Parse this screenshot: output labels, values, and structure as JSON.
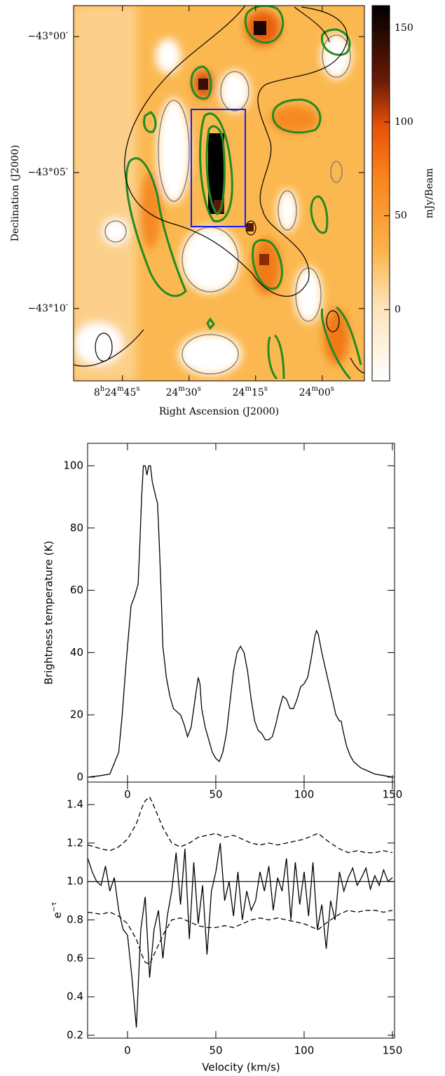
{
  "chart_data": [
    {
      "type": "image",
      "xlabel": "Right Ascension (J2000)",
      "ylabel": "Declination (J2000)",
      "xlim": [
        30296,
        30230.5
      ],
      "ylim": [
        -43.211,
        -42.981
      ],
      "xticks": [
        {
          "value": 30285,
          "label": [
            "8",
            "h",
            "24",
            "m",
            "45",
            "s"
          ]
        },
        {
          "value": 30270,
          "label": [
            "24",
            "m",
            "30",
            "s"
          ]
        },
        {
          "value": 30255,
          "label": [
            "24",
            "m",
            "15",
            "s"
          ]
        },
        {
          "value": 30240,
          "label": [
            "24",
            "m",
            "00",
            "s"
          ]
        }
      ],
      "yticks": [
        {
          "value": -43.0,
          "label": "−43°00′"
        },
        {
          "value": -43.083333,
          "label": "−43°05′"
        },
        {
          "value": -43.166667,
          "label": "−43°10′"
        }
      ],
      "colorbar": {
        "label": "mJy/Beam",
        "lim": [
          -38,
          162
        ],
        "ticks": [
          0,
          50,
          100,
          150
        ]
      }
    },
    {
      "type": "line",
      "ylabel": "Brightness temperature (K)",
      "xlim": [
        -22.6,
        151.2
      ],
      "ylim": [
        -1.6,
        107.2
      ],
      "xticks": [
        0,
        50,
        100,
        150
      ],
      "yticks": [
        0,
        20,
        40,
        60,
        80,
        100
      ],
      "series": [
        {
          "color": "#000000",
          "dash": false,
          "x": [
            -22,
            -15,
            -10,
            -5,
            -3,
            -1,
            0,
            2,
            4,
            6,
            7,
            8,
            9,
            10,
            11,
            12,
            13,
            14,
            16,
            17,
            18,
            19,
            20,
            22,
            24,
            26,
            28,
            30,
            32,
            34,
            36,
            38,
            40,
            41,
            42,
            44,
            46,
            48,
            50,
            52,
            54,
            56,
            58,
            60,
            62,
            64,
            66,
            68,
            70,
            72,
            74,
            76,
            78,
            80,
            82,
            84,
            86,
            88,
            90,
            92,
            94,
            96,
            98,
            100,
            102,
            104,
            106,
            107,
            108,
            110,
            112,
            114,
            116,
            118,
            120,
            121,
            122,
            124,
            126,
            128,
            132,
            136,
            140,
            145,
            150
          ],
          "values": [
            0,
            0.5,
            1,
            8,
            20,
            35,
            42,
            55,
            58,
            62,
            75,
            90,
            100,
            100,
            97,
            100,
            100,
            95,
            90,
            88,
            75,
            60,
            42,
            32,
            26,
            22,
            21,
            20,
            17,
            13,
            16,
            24,
            32,
            30,
            22,
            16,
            12,
            8,
            6,
            5,
            8,
            14,
            24,
            34,
            40,
            42,
            40,
            34,
            25,
            18,
            15,
            14,
            12,
            12,
            13,
            17,
            22,
            26,
            25,
            22,
            22,
            25,
            29,
            30,
            32,
            38,
            45,
            47,
            46,
            40,
            35,
            30,
            25,
            20,
            18,
            18,
            15,
            10,
            7,
            5,
            3,
            2,
            1,
            0.5,
            0
          ]
        }
      ]
    },
    {
      "type": "line",
      "xlabel": "Velocity (km/s)",
      "ylabel": [
        "e",
        "−τ"
      ],
      "xlim": [
        -22.6,
        151.2
      ],
      "ylim": [
        0.185,
        1.517
      ],
      "xticks": [
        0,
        50,
        100,
        150
      ],
      "yticks": [
        0.2,
        0.4,
        0.6,
        0.8,
        {
          "value": 1,
          "label": "1.0"
        },
        1.2,
        1.4
      ],
      "reference_y": 1,
      "series": [
        {
          "color": "#000000",
          "dash": false,
          "x": [
            -22.5,
            -20,
            -17.5,
            -15,
            -12.5,
            -10,
            -7.5,
            -5,
            -2.5,
            0,
            2.5,
            5,
            7.5,
            10,
            12.5,
            15,
            17.5,
            20,
            22.5,
            25,
            27.5,
            30,
            32.5,
            35,
            37.5,
            40,
            42.5,
            45,
            47.5,
            50,
            52.5,
            55,
            57.5,
            60,
            62.5,
            65,
            67.5,
            70,
            72.5,
            75,
            77.5,
            80,
            82.5,
            85,
            87.5,
            90,
            92.5,
            95,
            97.5,
            100,
            102.5,
            105,
            107.5,
            110,
            112.5,
            115,
            117.5,
            120,
            122.5,
            125,
            127.5,
            130,
            132.5,
            135,
            137.5,
            140,
            142.5,
            145,
            147.5,
            150
          ],
          "values": [
            1.12,
            1.05,
            1.0,
            0.98,
            1.08,
            0.95,
            1.02,
            0.85,
            0.75,
            0.72,
            0.5,
            0.24,
            0.75,
            0.92,
            0.5,
            0.75,
            0.85,
            0.6,
            0.82,
            0.95,
            1.15,
            0.88,
            1.17,
            0.7,
            1.1,
            0.78,
            0.98,
            0.62,
            0.95,
            1.05,
            1.2,
            0.9,
            1.0,
            0.82,
            1.05,
            0.8,
            0.95,
            0.85,
            0.9,
            1.05,
            0.95,
            1.08,
            0.85,
            1.02,
            0.95,
            1.12,
            0.8,
            1.1,
            0.88,
            1.05,
            0.82,
            1.1,
            0.75,
            0.88,
            0.65,
            0.9,
            0.8,
            1.05,
            0.95,
            1.02,
            1.07,
            0.98,
            1.02,
            1.07,
            0.96,
            1.03,
            0.98,
            1.06,
            1.0,
            1.02
          ]
        },
        {
          "color": "#000000",
          "dash": true,
          "x": [
            -22.5,
            -15,
            -10,
            -5,
            0,
            5,
            8,
            10,
            12.5,
            15,
            20,
            25,
            30,
            35,
            40,
            45,
            50,
            55,
            60,
            65,
            70,
            75,
            80,
            85,
            90,
            95,
            100,
            105,
            108,
            112,
            115,
            120,
            125,
            130,
            135,
            140,
            145,
            150
          ],
          "values": [
            1.19,
            1.17,
            1.16,
            1.18,
            1.22,
            1.3,
            1.38,
            1.42,
            1.44,
            1.39,
            1.28,
            1.2,
            1.18,
            1.2,
            1.23,
            1.24,
            1.25,
            1.23,
            1.24,
            1.22,
            1.2,
            1.19,
            1.2,
            1.19,
            1.2,
            1.21,
            1.22,
            1.24,
            1.25,
            1.22,
            1.2,
            1.17,
            1.15,
            1.16,
            1.15,
            1.15,
            1.16,
            1.15
          ]
        },
        {
          "color": "#000000",
          "dash": true,
          "x": [
            -22.5,
            -15,
            -10,
            -5,
            0,
            5,
            8,
            10,
            12.5,
            15,
            20,
            25,
            30,
            35,
            40,
            45,
            50,
            55,
            60,
            65,
            70,
            75,
            80,
            85,
            90,
            95,
            100,
            105,
            108,
            112,
            115,
            120,
            125,
            130,
            135,
            140,
            145,
            150
          ],
          "values": [
            0.84,
            0.83,
            0.84,
            0.82,
            0.78,
            0.7,
            0.62,
            0.58,
            0.57,
            0.62,
            0.72,
            0.8,
            0.81,
            0.79,
            0.77,
            0.76,
            0.76,
            0.77,
            0.76,
            0.78,
            0.8,
            0.81,
            0.8,
            0.81,
            0.8,
            0.79,
            0.78,
            0.76,
            0.75,
            0.78,
            0.8,
            0.83,
            0.85,
            0.84,
            0.85,
            0.85,
            0.84,
            0.85
          ]
        }
      ]
    }
  ]
}
